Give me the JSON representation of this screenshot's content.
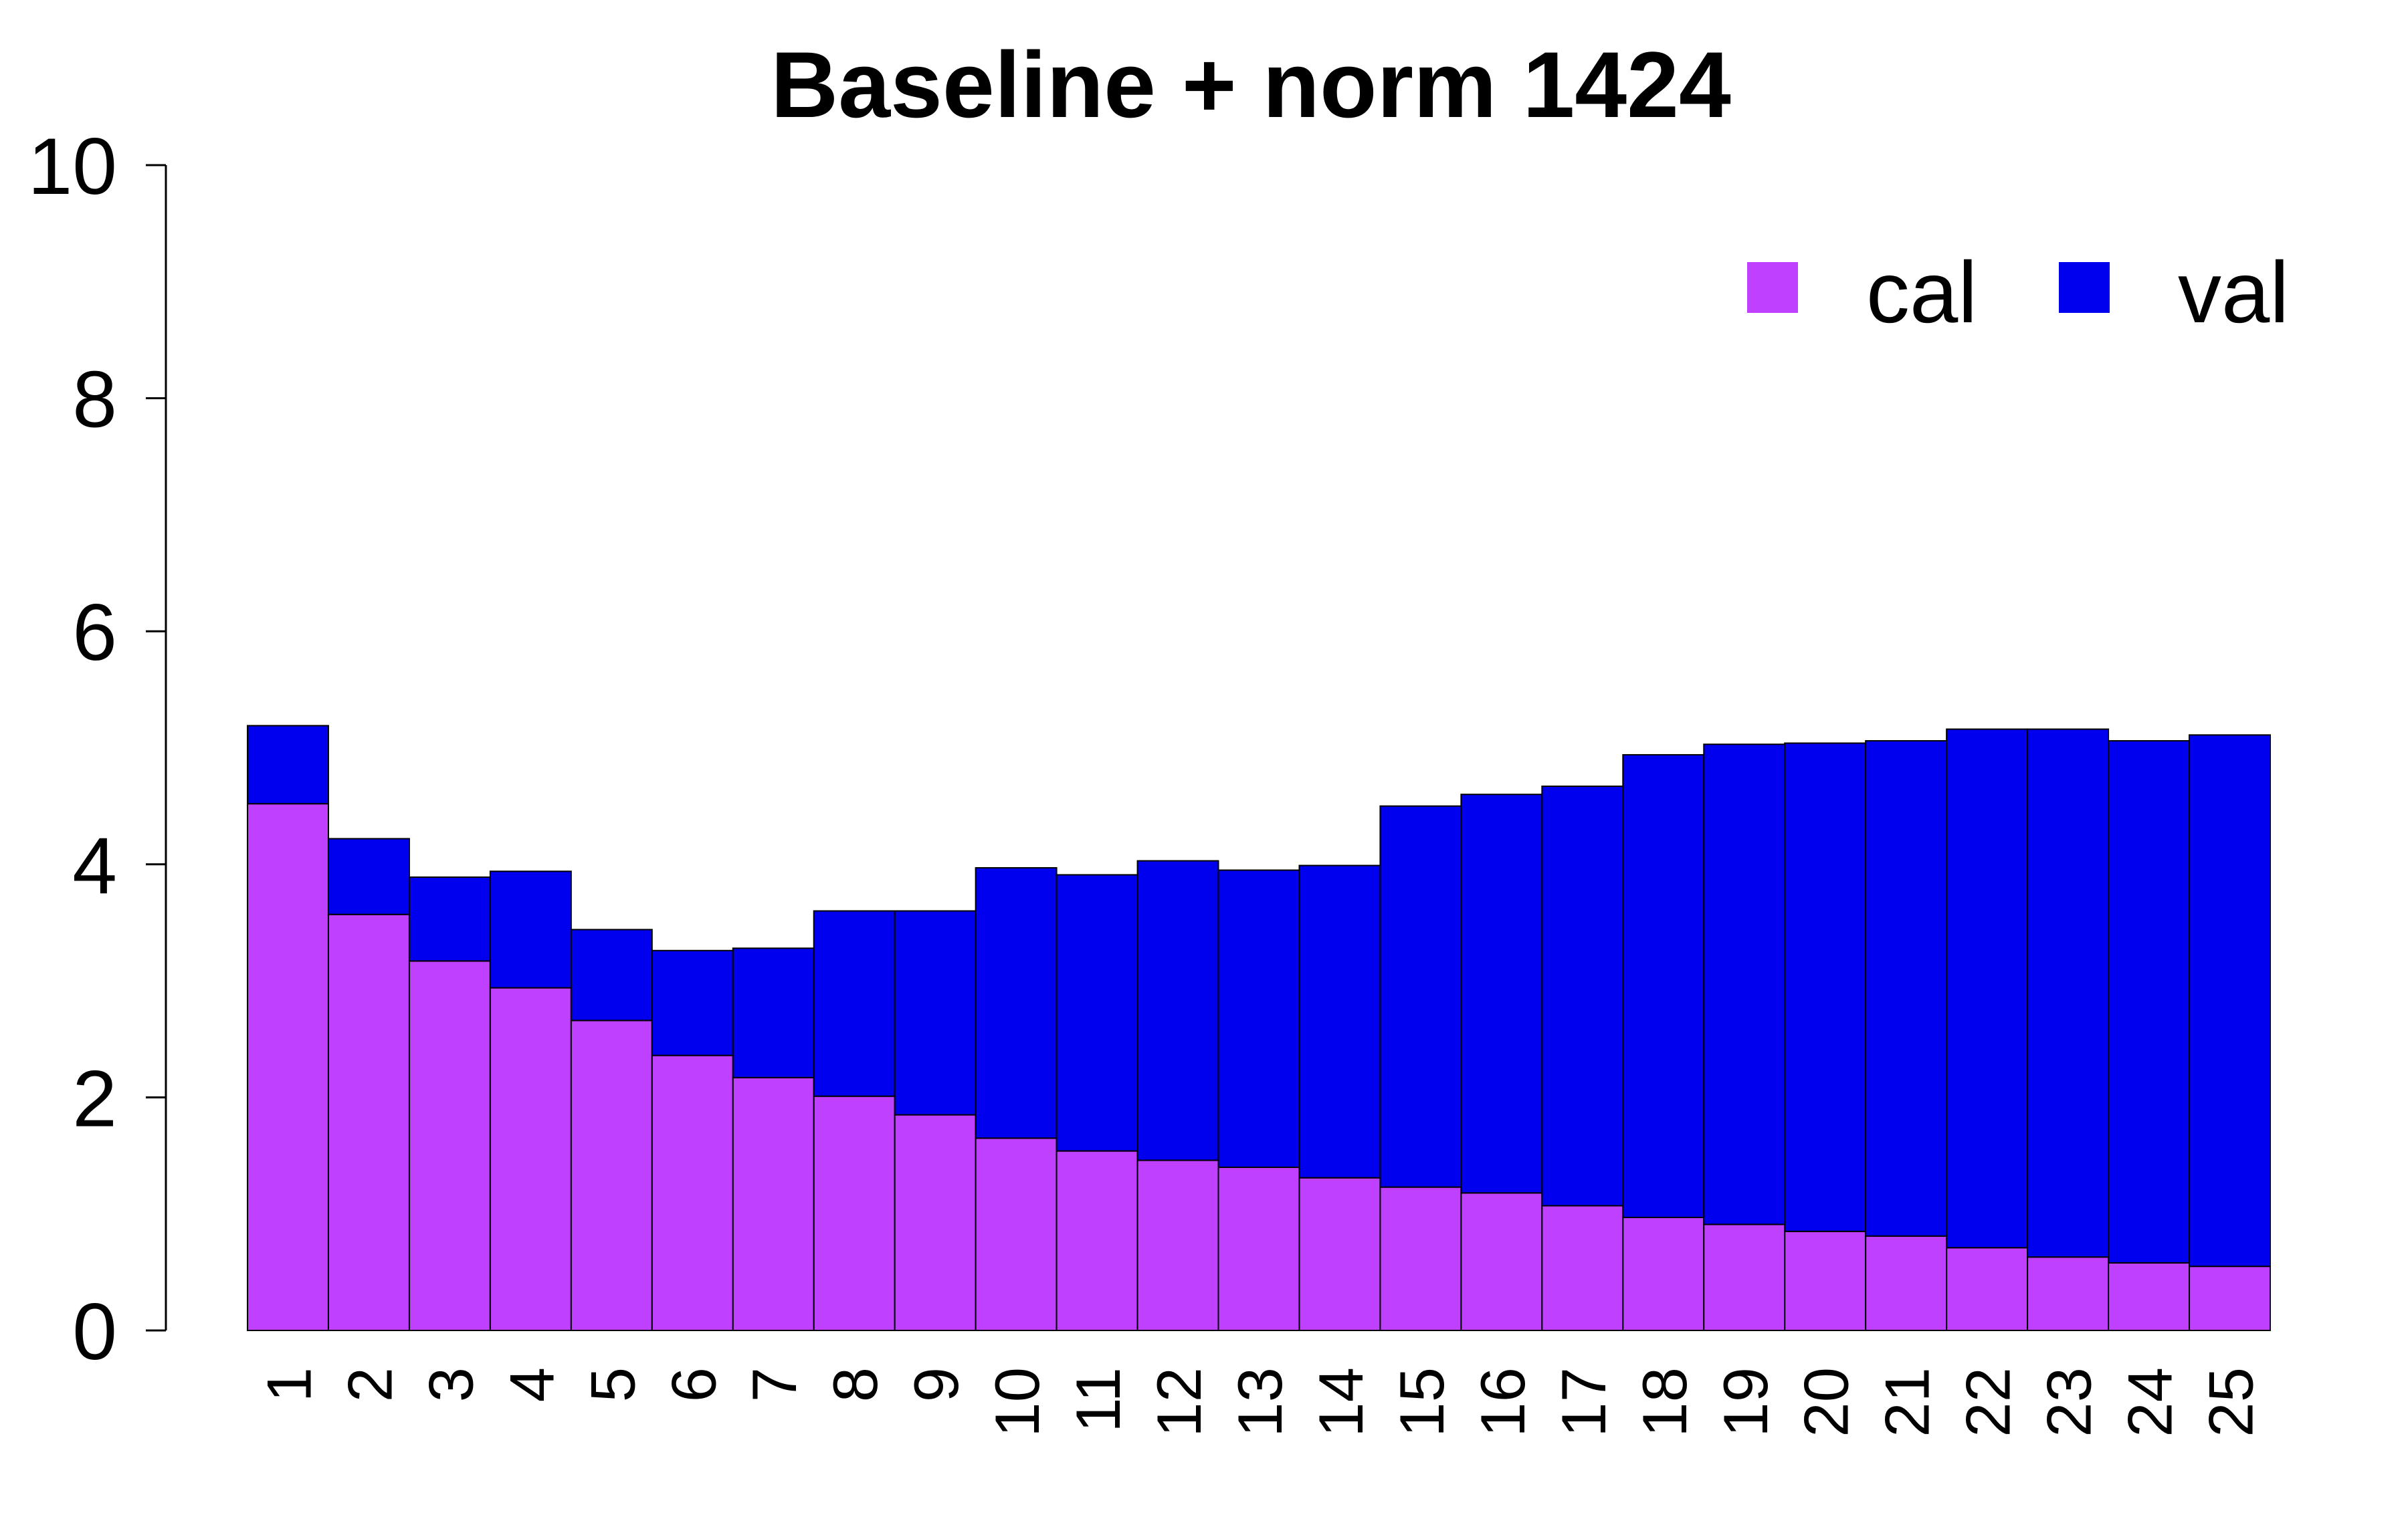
{
  "chart_data": {
    "type": "bar",
    "stacked": true,
    "title": "Baseline + norm 1424",
    "xlabel": "",
    "ylabel": "",
    "ylim": [
      0,
      10
    ],
    "yticks": [
      0,
      2,
      4,
      6,
      8,
      10
    ],
    "categories": [
      "1",
      "2",
      "3",
      "4",
      "5",
      "6",
      "7",
      "8",
      "9",
      "10",
      "11",
      "12",
      "13",
      "14",
      "15",
      "16",
      "17",
      "18",
      "19",
      "20",
      "21",
      "22",
      "23",
      "24",
      "25"
    ],
    "series": [
      {
        "name": "cal",
        "color": "#bf40ff",
        "values": [
          4.52,
          3.57,
          3.17,
          2.94,
          2.66,
          2.36,
          2.17,
          2.01,
          1.85,
          1.65,
          1.54,
          1.46,
          1.4,
          1.31,
          1.23,
          1.18,
          1.07,
          0.97,
          0.91,
          0.85,
          0.81,
          0.71,
          0.63,
          0.58,
          0.55
        ]
      },
      {
        "name": "val",
        "color": "#0000ee",
        "values": [
          0.67,
          0.65,
          0.72,
          1.0,
          0.78,
          0.9,
          1.11,
          1.59,
          1.75,
          2.32,
          2.37,
          2.57,
          2.55,
          2.68,
          3.27,
          3.42,
          3.6,
          3.97,
          4.12,
          4.19,
          4.25,
          4.45,
          4.53,
          4.48,
          4.56
        ]
      }
    ],
    "legend": [
      "cal",
      "val"
    ],
    "legend_position": "top-right",
    "grid": false
  }
}
